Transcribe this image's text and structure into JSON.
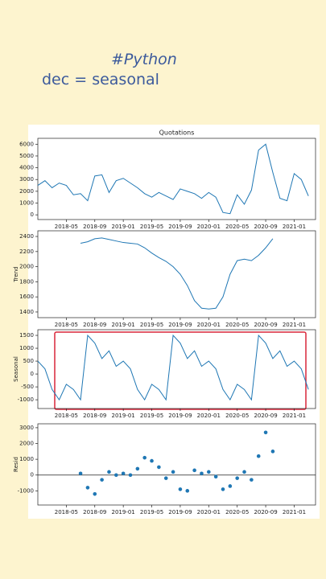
{
  "caption": {
    "tag": "#Python",
    "code": "dec = seasonal"
  },
  "chart_data": [
    {
      "type": "line",
      "title": "Quotations",
      "color": "#1f77b4",
      "xlim": [
        "2018-01",
        "2021-04"
      ],
      "x": [
        "2018-01",
        "2018-02",
        "2018-03",
        "2018-04",
        "2018-05",
        "2018-06",
        "2018-07",
        "2018-08",
        "2018-09",
        "2018-10",
        "2018-11",
        "2018-12",
        "2019-01",
        "2019-02",
        "2019-03",
        "2019-04",
        "2019-05",
        "2019-06",
        "2019-07",
        "2019-08",
        "2019-09",
        "2019-10",
        "2019-11",
        "2019-12",
        "2020-01",
        "2020-02",
        "2020-03",
        "2020-04",
        "2020-05",
        "2020-06",
        "2020-07",
        "2020-08",
        "2020-09",
        "2020-10",
        "2020-11",
        "2020-12",
        "2021-01",
        "2021-02",
        "2021-03"
      ],
      "values": [
        2500,
        2900,
        2300,
        2700,
        2500,
        1700,
        1800,
        1200,
        3300,
        3400,
        1900,
        2900,
        3100,
        2700,
        2300,
        1800,
        1500,
        1900,
        1600,
        1300,
        2200,
        2000,
        1800,
        1400,
        1900,
        1500,
        200,
        100,
        1700,
        900,
        2100,
        5500,
        6000,
        3600,
        1400,
        1200,
        3500,
        3000,
        1600
      ],
      "xticks": [
        "2018-05",
        "2018-09",
        "2019-01",
        "2019-05",
        "2019-09",
        "2020-01",
        "2020-05",
        "2020-09",
        "2021-01"
      ],
      "ylim": [
        -400,
        6500
      ],
      "yticks": [
        0,
        1000,
        2000,
        3000,
        4000,
        5000,
        6000
      ]
    },
    {
      "type": "line",
      "ylabel": "Trend",
      "color": "#1f77b4",
      "xlim": [
        "2018-01",
        "2021-04"
      ],
      "x": [
        "2018-01",
        "2018-02",
        "2018-03",
        "2018-04",
        "2018-05",
        "2018-06",
        "2018-07",
        "2018-08",
        "2018-09",
        "2018-10",
        "2018-11",
        "2018-12",
        "2019-01",
        "2019-02",
        "2019-03",
        "2019-04",
        "2019-05",
        "2019-06",
        "2019-07",
        "2019-08",
        "2019-09",
        "2019-10",
        "2019-11",
        "2019-12",
        "2020-01",
        "2020-02",
        "2020-03",
        "2020-04",
        "2020-05",
        "2020-06",
        "2020-07",
        "2020-08",
        "2020-09",
        "2020-10",
        "2020-11",
        "2020-12",
        "2021-01",
        "2021-02",
        "2021-03"
      ],
      "values": [
        null,
        null,
        null,
        null,
        null,
        null,
        2310,
        2330,
        2370,
        2380,
        2360,
        2340,
        2320,
        2310,
        2300,
        2250,
        2180,
        2120,
        2070,
        2000,
        1900,
        1750,
        1550,
        1450,
        1440,
        1450,
        1600,
        1900,
        2080,
        2100,
        2080,
        2150,
        2250,
        2370,
        null,
        null,
        null,
        null,
        null
      ],
      "xticks": [
        "2018-05",
        "2018-09",
        "2019-01",
        "2019-05",
        "2019-09",
        "2020-01",
        "2020-05",
        "2020-09",
        "2021-01"
      ],
      "ylim": [
        1325,
        2475
      ],
      "yticks": [
        1400,
        1600,
        1800,
        2000,
        2200,
        2400
      ]
    },
    {
      "type": "line",
      "ylabel": "Seasonal",
      "color": "#1f77b4",
      "xlim": [
        "2018-01",
        "2021-04"
      ],
      "x": [
        "2018-01",
        "2018-02",
        "2018-03",
        "2018-04",
        "2018-05",
        "2018-06",
        "2018-07",
        "2018-08",
        "2018-09",
        "2018-10",
        "2018-11",
        "2018-12",
        "2019-01",
        "2019-02",
        "2019-03",
        "2019-04",
        "2019-05",
        "2019-06",
        "2019-07",
        "2019-08",
        "2019-09",
        "2019-10",
        "2019-11",
        "2019-12",
        "2020-01",
        "2020-02",
        "2020-03",
        "2020-04",
        "2020-05",
        "2020-06",
        "2020-07",
        "2020-08",
        "2020-09",
        "2020-10",
        "2020-11",
        "2020-12",
        "2021-01",
        "2021-02",
        "2021-03"
      ],
      "values": [
        500,
        200,
        -600,
        -1000,
        -400,
        -600,
        -1000,
        1500,
        1200,
        600,
        900,
        300,
        500,
        200,
        -600,
        -1000,
        -400,
        -600,
        -1000,
        1500,
        1200,
        600,
        900,
        300,
        500,
        200,
        -600,
        -1000,
        -400,
        -600,
        -1000,
        1500,
        1200,
        600,
        900,
        300,
        500,
        200,
        -600
      ],
      "xticks": [
        "2018-05",
        "2018-09",
        "2019-01",
        "2019-05",
        "2019-09",
        "2020-01",
        "2020-05",
        "2020-09",
        "2021-01"
      ],
      "ylim": [
        -1340,
        1720
      ],
      "yticks": [
        -1000,
        -500,
        0,
        500,
        1000,
        1500
      ]
    },
    {
      "type": "scatter",
      "ylabel": "Resid",
      "color": "#1f77b4",
      "xlim": [
        "2018-01",
        "2021-04"
      ],
      "x": [
        "2018-01",
        "2018-02",
        "2018-03",
        "2018-04",
        "2018-05",
        "2018-06",
        "2018-07",
        "2018-08",
        "2018-09",
        "2018-10",
        "2018-11",
        "2018-12",
        "2019-01",
        "2019-02",
        "2019-03",
        "2019-04",
        "2019-05",
        "2019-06",
        "2019-07",
        "2019-08",
        "2019-09",
        "2019-10",
        "2019-11",
        "2019-12",
        "2020-01",
        "2020-02",
        "2020-03",
        "2020-04",
        "2020-05",
        "2020-06",
        "2020-07",
        "2020-08",
        "2020-09",
        "2020-10",
        "2020-11",
        "2020-12",
        "2021-01",
        "2021-02",
        "2021-03"
      ],
      "values": [
        null,
        null,
        null,
        null,
        null,
        null,
        100,
        -800,
        -1200,
        -300,
        200,
        0,
        100,
        0,
        400,
        1100,
        900,
        500,
        -200,
        200,
        -900,
        -1000,
        300,
        100,
        200,
        -100,
        -900,
        -700,
        -200,
        200,
        -300,
        1200,
        2700,
        1500,
        null,
        null,
        null,
        null,
        null
      ],
      "xticks": [
        "2018-05",
        "2018-09",
        "2019-01",
        "2019-05",
        "2019-09",
        "2020-01",
        "2020-05",
        "2020-09",
        "2021-01"
      ],
      "ylim": [
        -1900,
        3250
      ],
      "yticks": [
        -1000,
        0,
        1000,
        2000,
        3000
      ]
    }
  ]
}
